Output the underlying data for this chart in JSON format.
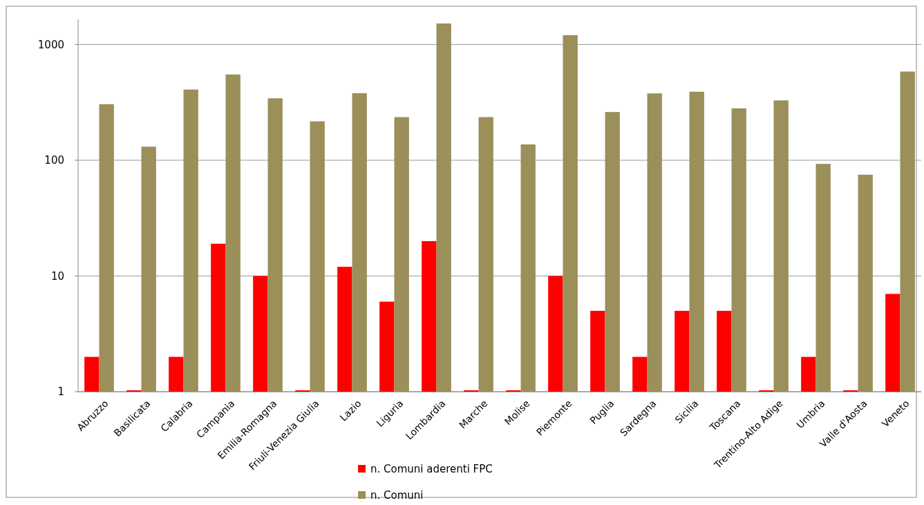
{
  "chart_data": {
    "type": "bar",
    "categories": [
      "Abruzzo",
      "Basilicata",
      "Calabria",
      "Campania",
      "Emilia-Romagna",
      "Friuli-Venezia Giulia",
      "Lazio",
      "Liguria",
      "Lombardia",
      "Marche",
      "Molise",
      "Piemonte",
      "Puglia",
      "Sardegna",
      "Sicilia",
      "Toscana",
      "Trentino-Alto Adige",
      "Umbria",
      "Valle d'Aosta",
      "Veneto"
    ],
    "series": [
      {
        "name": "n. Comuni aderenti FPC",
        "color": "#ff0000",
        "values": [
          2,
          1,
          2,
          19,
          10,
          1,
          12,
          6,
          20,
          1,
          1,
          10,
          5,
          2,
          5,
          5,
          1,
          2,
          1,
          7
        ]
      },
      {
        "name": "n. Comuni",
        "color": "#9b8f5a",
        "values": [
          305,
          131,
          408,
          551,
          343,
          217,
          380,
          236,
          1520,
          236,
          137,
          1205,
          261,
          378,
          391,
          281,
          329,
          93,
          75,
          584
        ]
      }
    ],
    "log": true,
    "ylim": [
      1,
      1650
    ],
    "yticks": [
      1,
      10,
      100,
      1000
    ],
    "grid": "y",
    "legend": "bottom"
  }
}
